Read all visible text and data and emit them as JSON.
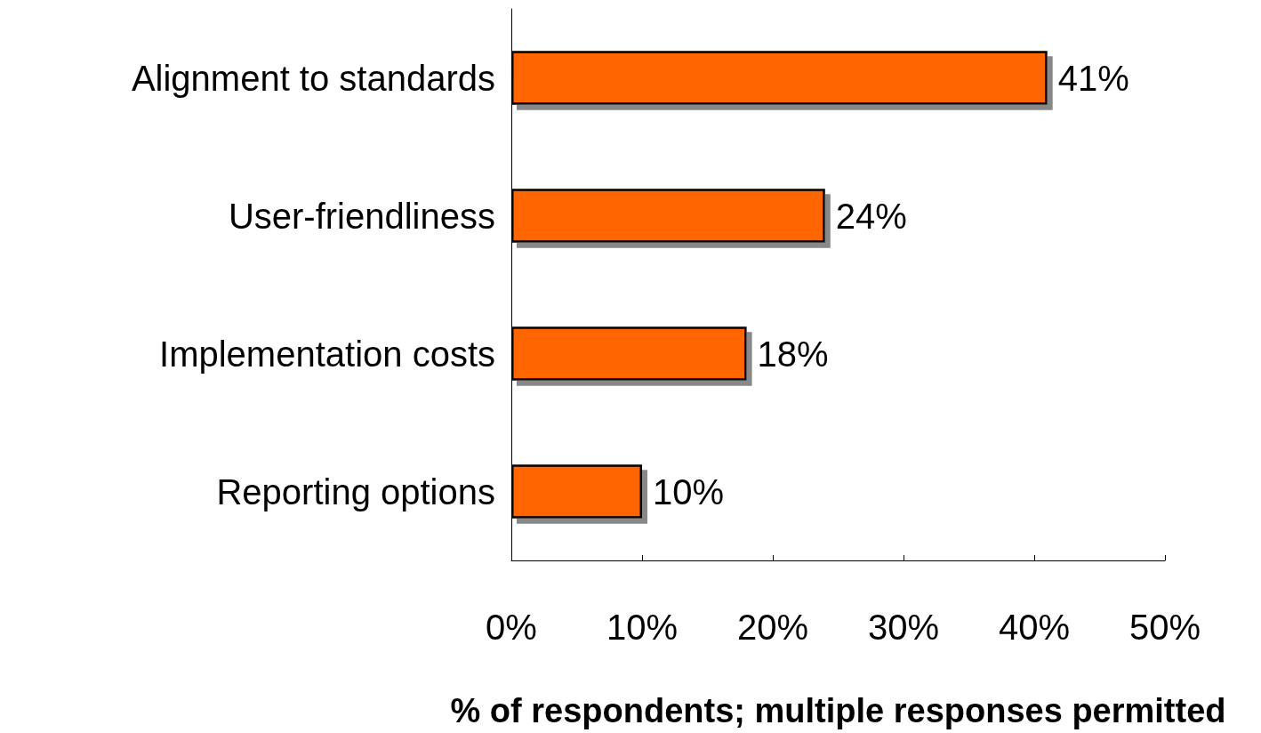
{
  "chart_data": {
    "type": "bar",
    "orientation": "horizontal",
    "xlabel": "% of respondents; multiple responses permitted",
    "categories": [
      "Alignment to standards",
      "User-friendliness",
      "Implementation costs",
      "Reporting options"
    ],
    "values": [
      41,
      24,
      18,
      10
    ],
    "color": "#ff6600",
    "value_labels": [
      "41%",
      "24%",
      "18%",
      "10%"
    ],
    "xlim": [
      0,
      50
    ],
    "xticks": [
      {
        "value": 0,
        "label": "0%"
      },
      {
        "value": 10,
        "label": "10%"
      },
      {
        "value": 20,
        "label": "20%"
      },
      {
        "value": 30,
        "label": "30%"
      },
      {
        "value": 40,
        "label": "40%"
      },
      {
        "value": 50,
        "label": "50%"
      }
    ],
    "grid": false
  }
}
